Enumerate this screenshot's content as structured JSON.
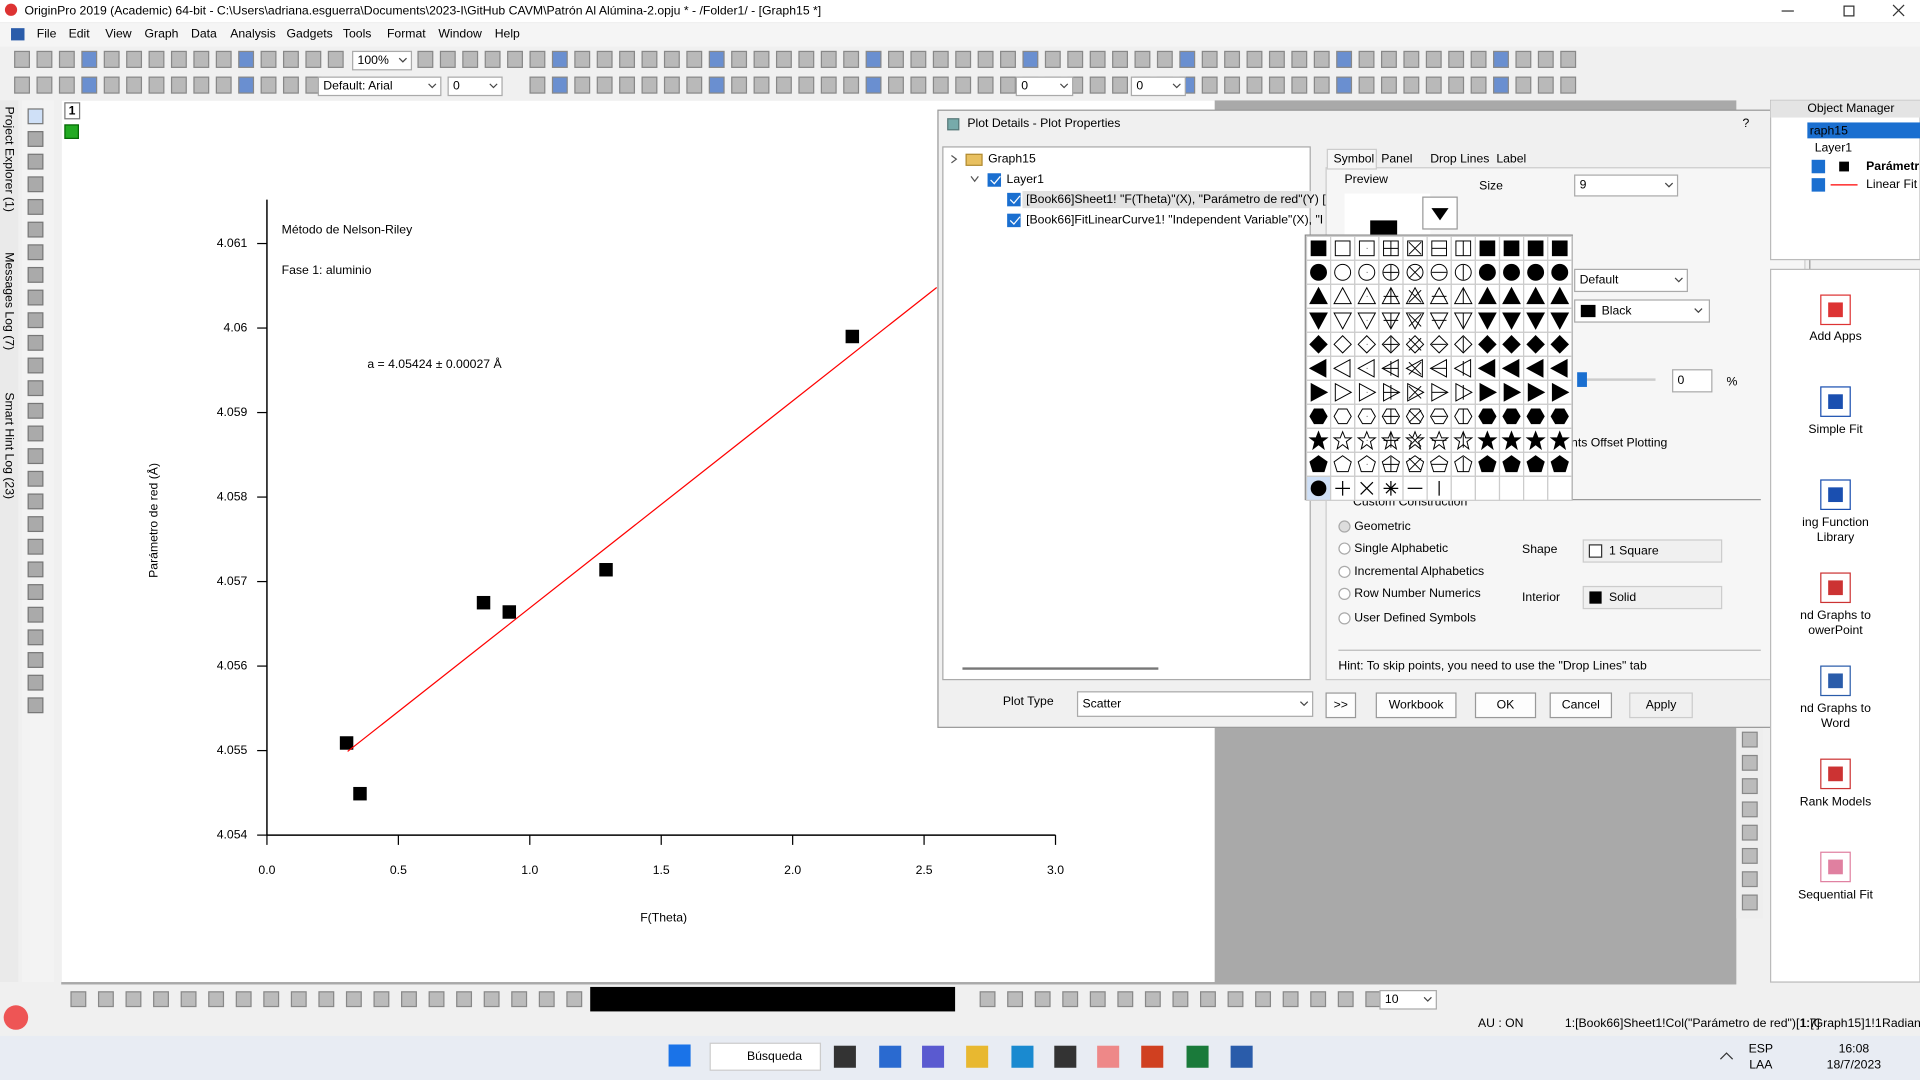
{
  "window": {
    "title": "OriginPro 2019 (Academic) 64-bit - C:\\Users\\adriana.esguerra\\Documents\\2023-I\\GitHub CAVM\\Patrón Al Alúmina-2.opju * - /Folder1/ - [Graph15 *]"
  },
  "menu": [
    "File",
    "Edit",
    "View",
    "Graph",
    "Data",
    "Analysis",
    "Gadgets",
    "Tools",
    "Format",
    "Window",
    "Help"
  ],
  "toolbar": {
    "zoom": "100%",
    "font": "Default: Arial",
    "size_a": "0",
    "size_b": "0",
    "size_c": "0"
  },
  "side_tabs": [
    "Project Explorer (1)",
    "Messages Log (7)",
    "Smart Hint Log (23)"
  ],
  "layer_tab": "1",
  "chart_data": {
    "type": "scatter",
    "title": "Método de Nelson-Riley",
    "subtitle": "Fase 1: aluminio",
    "annotation": "a = 4.05424 ± 0.00027 Å",
    "x_label": "F(Theta)",
    "y_label": "Parámetro de red (Å)",
    "xlim": [
      0,
      3
    ],
    "ylim": [
      4.054,
      4.06152
    ],
    "xticks": [
      {
        "value": 0,
        "label": "0.0"
      },
      {
        "value": 0.5,
        "label": "0.5"
      },
      {
        "value": 1,
        "label": "1.0"
      },
      {
        "value": 1.5,
        "label": "1.5"
      },
      {
        "value": 2,
        "label": "2.0"
      },
      {
        "value": 2.5,
        "label": "2.5"
      },
      {
        "value": 3,
        "label": "3.0"
      }
    ],
    "yticks": [
      4.054,
      4.055,
      4.056,
      4.057,
      4.058,
      4.059,
      4.06,
      4.061
    ],
    "series": [
      {
        "name": "Parámetro de red",
        "color": "#000000",
        "x": [
          0.303,
          0.354,
          0.824,
          0.922,
          1.29,
          2.227
        ],
        "values": [
          4.05509,
          4.05449,
          4.05675,
          4.05664,
          4.05714,
          4.0599
        ]
      },
      {
        "name": "Linear Fit",
        "color": "#ff0000",
        "x": [
          0.307,
          2.548
        ],
        "values": [
          4.05499,
          4.06048
        ]
      }
    ]
  },
  "dialog": {
    "title": "Plot Details - Plot Properties",
    "help": "?",
    "tree": [
      "Graph15",
      "Layer1",
      "[Book66]Sheet1! \"F(Theta)\"(X), \"Parámetro de red\"(Y) [",
      "[Book66]FitLinearCurve1! \"Independent Variable\"(X), \"I"
    ],
    "tabs": [
      "Symbol",
      "Panel",
      "Drop Lines",
      "Label"
    ],
    "preview": "Preview",
    "size_label": "Size",
    "size": "9",
    "edge": "Default",
    "color": "Black",
    "transparency": "0",
    "percent": "%",
    "offset": "nts Offset Plotting",
    "custom": "Custom Construction",
    "options": [
      "Geometric",
      "Single Alphabetic",
      "Incremental Alphabetics",
      "Row Number Numerics",
      "User Defined Symbols"
    ],
    "shape_label": "Shape",
    "shape": "1 Square",
    "interior_label": "Interior",
    "interior": "Solid",
    "hint": "Hint: To skip points, you need to use the \"Drop Lines\" tab",
    "plot_type_label": "Plot Type",
    "plot_type": "Scatter",
    "buttons": [
      ">>",
      "Workbook",
      "OK",
      "Cancel",
      "Apply"
    ]
  },
  "object_manager": {
    "title": "Object Manager",
    "graph": "raph15",
    "layer": "Layer1",
    "plots": [
      "Parámetr",
      "Linear Fit c"
    ]
  },
  "apps": [
    [
      "Add Apps"
    ],
    [
      "Simple Fit"
    ],
    [
      "ing Function",
      "Library"
    ],
    [
      "nd Graphs to",
      "owerPoint"
    ],
    [
      "nd Graphs to",
      "Word"
    ],
    [
      "Rank Models"
    ],
    [
      "Sequential Fit"
    ]
  ],
  "bottom_zoom": "10",
  "status": [
    "AU : ON",
    "1:[Book66]Sheet1!Col(\"Parámetro de red\")[1:7]",
    "1:[Graph15]1!1",
    "Radian"
  ],
  "taskbar": {
    "search": "Búsqueda",
    "lang": "ESP",
    "region": "LAA",
    "time": "16:08",
    "date": "18/7/2023"
  }
}
